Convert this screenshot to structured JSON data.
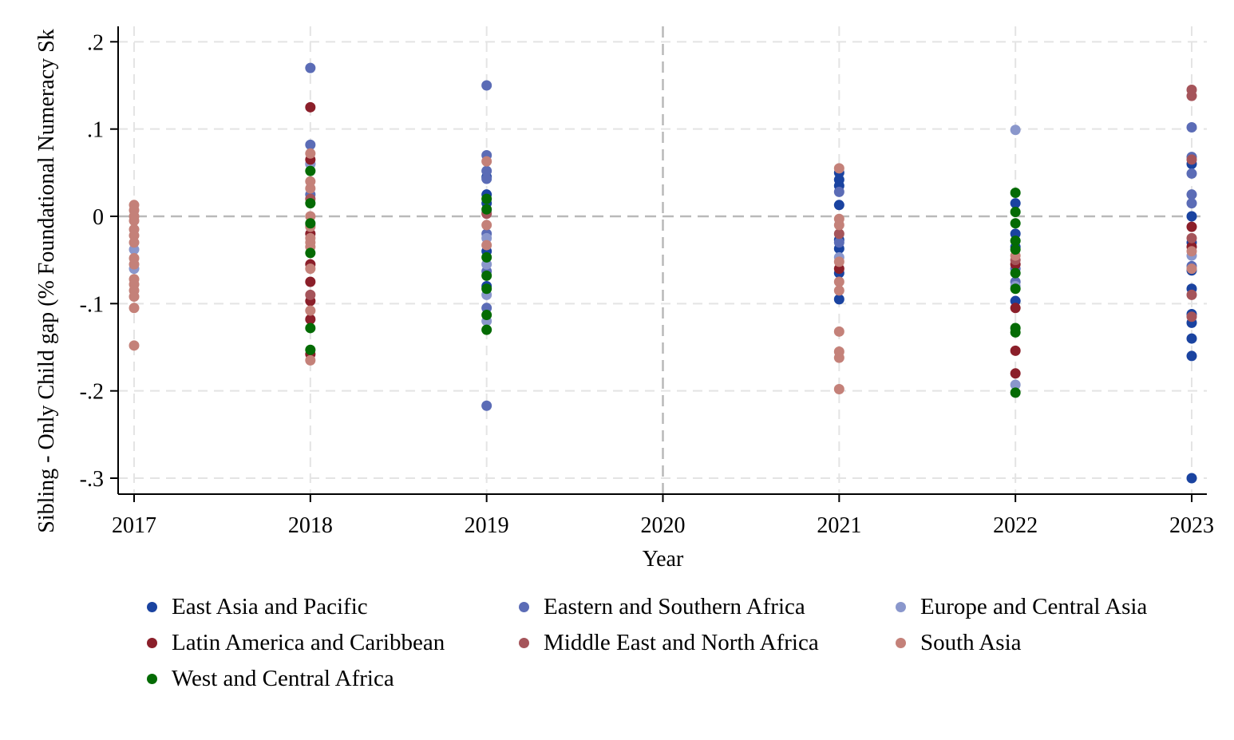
{
  "chart_data": {
    "type": "scatter",
    "xlabel": "Year",
    "ylabel": "Sibling - Only Child gap (% Foundational Numeracy Sk",
    "x_ticks": [
      "2017",
      "2018",
      "2019",
      "2020",
      "2021",
      "2022",
      "2023"
    ],
    "y_ticks": [
      ".2",
      ".1",
      "0",
      "-.1",
      "-.2",
      "-.3"
    ],
    "xlim": [
      2017,
      2023
    ],
    "ylim": [
      -0.3,
      0.2
    ],
    "grid": true,
    "reference_lines": {
      "y": 0,
      "x": 2020
    },
    "legend_position": "bottom",
    "series": [
      {
        "name": "East Asia and Pacific",
        "color": "#1a43a0",
        "points": [
          [
            2019,
            0.045
          ],
          [
            2019,
            0.025
          ],
          [
            2019,
            0.015
          ],
          [
            2019,
            -0.04
          ],
          [
            2019,
            -0.08
          ],
          [
            2021,
            0.05
          ],
          [
            2021,
            0.042
          ],
          [
            2021,
            0.035
          ],
          [
            2021,
            0.013
          ],
          [
            2021,
            -0.027
          ],
          [
            2021,
            -0.037
          ],
          [
            2021,
            -0.065
          ],
          [
            2021,
            -0.095
          ],
          [
            2022,
            0.015
          ],
          [
            2022,
            -0.02
          ],
          [
            2022,
            -0.035
          ],
          [
            2022,
            -0.097
          ],
          [
            2023,
            0.06
          ],
          [
            2023,
            0.0
          ],
          [
            2023,
            -0.03
          ],
          [
            2023,
            -0.062
          ],
          [
            2023,
            -0.083
          ],
          [
            2023,
            -0.112
          ],
          [
            2023,
            -0.122
          ],
          [
            2023,
            -0.14
          ],
          [
            2023,
            -0.16
          ],
          [
            2023,
            -0.3
          ]
        ]
      },
      {
        "name": "Eastern and Southern Africa",
        "color": "#5b6cb6",
        "points": [
          [
            2018,
            0.17
          ],
          [
            2018,
            0.082
          ],
          [
            2018,
            0.06
          ],
          [
            2018,
            0.025
          ],
          [
            2019,
            0.15
          ],
          [
            2019,
            0.07
          ],
          [
            2019,
            0.052
          ],
          [
            2019,
            0.043
          ],
          [
            2019,
            -0.02
          ],
          [
            2019,
            -0.063
          ],
          [
            2019,
            -0.105
          ],
          [
            2019,
            -0.217
          ],
          [
            2021,
            0.028
          ],
          [
            2021,
            -0.03
          ],
          [
            2022,
            -0.06
          ],
          [
            2022,
            -0.075
          ],
          [
            2023,
            0.102
          ],
          [
            2023,
            0.068
          ],
          [
            2023,
            0.049
          ],
          [
            2023,
            0.025
          ],
          [
            2023,
            0.015
          ],
          [
            2023,
            -0.057
          ]
        ]
      },
      {
        "name": "Europe and Central Asia",
        "color": "#8a97cc",
        "points": [
          [
            2017,
            -0.038
          ],
          [
            2017,
            -0.06
          ],
          [
            2018,
            0.06
          ],
          [
            2018,
            -0.01
          ],
          [
            2019,
            0.005
          ],
          [
            2019,
            -0.025
          ],
          [
            2019,
            -0.055
          ],
          [
            2019,
            -0.09
          ],
          [
            2019,
            -0.12
          ],
          [
            2021,
            -0.047
          ],
          [
            2022,
            0.099
          ],
          [
            2022,
            -0.08
          ],
          [
            2022,
            -0.193
          ],
          [
            2023,
            -0.045
          ]
        ]
      },
      {
        "name": "Latin America and Caribbean",
        "color": "#8b1f2a",
        "points": [
          [
            2018,
            0.125
          ],
          [
            2018,
            0.065
          ],
          [
            2018,
            -0.02
          ],
          [
            2018,
            -0.055
          ],
          [
            2018,
            -0.075
          ],
          [
            2018,
            -0.097
          ],
          [
            2018,
            -0.118
          ],
          [
            2018,
            -0.158
          ],
          [
            2021,
            -0.06
          ],
          [
            2022,
            -0.055
          ],
          [
            2022,
            -0.105
          ],
          [
            2022,
            -0.154
          ],
          [
            2022,
            -0.18
          ],
          [
            2023,
            -0.012
          ],
          [
            2023,
            -0.035
          ]
        ]
      },
      {
        "name": "Middle East and North Africa",
        "color": "#a5545a",
        "points": [
          [
            2018,
            0.02
          ],
          [
            2018,
            -0.09
          ],
          [
            2019,
            0.003
          ],
          [
            2021,
            -0.02
          ],
          [
            2022,
            -0.05
          ],
          [
            2023,
            0.145
          ],
          [
            2023,
            0.138
          ],
          [
            2023,
            0.065
          ],
          [
            2023,
            -0.025
          ],
          [
            2023,
            -0.09
          ],
          [
            2023,
            -0.115
          ]
        ]
      },
      {
        "name": "South Asia",
        "color": "#c48179",
        "points": [
          [
            2017,
            0.013
          ],
          [
            2017,
            0.007
          ],
          [
            2017,
            0.0
          ],
          [
            2017,
            -0.005
          ],
          [
            2017,
            -0.015
          ],
          [
            2017,
            -0.022
          ],
          [
            2017,
            -0.03
          ],
          [
            2017,
            -0.048
          ],
          [
            2017,
            -0.055
          ],
          [
            2017,
            -0.072
          ],
          [
            2017,
            -0.078
          ],
          [
            2017,
            -0.085
          ],
          [
            2017,
            -0.092
          ],
          [
            2017,
            -0.105
          ],
          [
            2017,
            -0.148
          ],
          [
            2018,
            0.072
          ],
          [
            2018,
            0.04
          ],
          [
            2018,
            0.032
          ],
          [
            2018,
            0.0
          ],
          [
            2018,
            -0.012
          ],
          [
            2018,
            -0.025
          ],
          [
            2018,
            -0.03
          ],
          [
            2018,
            -0.035
          ],
          [
            2018,
            -0.06
          ],
          [
            2018,
            -0.108
          ],
          [
            2018,
            -0.165
          ],
          [
            2019,
            0.063
          ],
          [
            2019,
            -0.01
          ],
          [
            2019,
            -0.033
          ],
          [
            2021,
            0.055
          ],
          [
            2021,
            -0.003
          ],
          [
            2021,
            -0.01
          ],
          [
            2021,
            -0.052
          ],
          [
            2021,
            -0.075
          ],
          [
            2021,
            -0.085
          ],
          [
            2021,
            -0.132
          ],
          [
            2021,
            -0.155
          ],
          [
            2021,
            -0.162
          ],
          [
            2021,
            -0.198
          ],
          [
            2022,
            -0.045
          ],
          [
            2023,
            -0.04
          ],
          [
            2023,
            -0.06
          ]
        ]
      },
      {
        "name": "West and Central Africa",
        "color": "#046b04",
        "points": [
          [
            2018,
            0.052
          ],
          [
            2018,
            0.015
          ],
          [
            2018,
            -0.008
          ],
          [
            2018,
            -0.042
          ],
          [
            2018,
            -0.128
          ],
          [
            2018,
            -0.153
          ],
          [
            2019,
            0.02
          ],
          [
            2019,
            0.008
          ],
          [
            2019,
            -0.047
          ],
          [
            2019,
            -0.068
          ],
          [
            2019,
            -0.083
          ],
          [
            2019,
            -0.113
          ],
          [
            2019,
            -0.13
          ],
          [
            2022,
            0.027
          ],
          [
            2022,
            0.005
          ],
          [
            2022,
            -0.008
          ],
          [
            2022,
            -0.028
          ],
          [
            2022,
            -0.038
          ],
          [
            2022,
            -0.065
          ],
          [
            2022,
            -0.083
          ],
          [
            2022,
            -0.128
          ],
          [
            2022,
            -0.133
          ],
          [
            2022,
            -0.202
          ]
        ]
      }
    ]
  }
}
